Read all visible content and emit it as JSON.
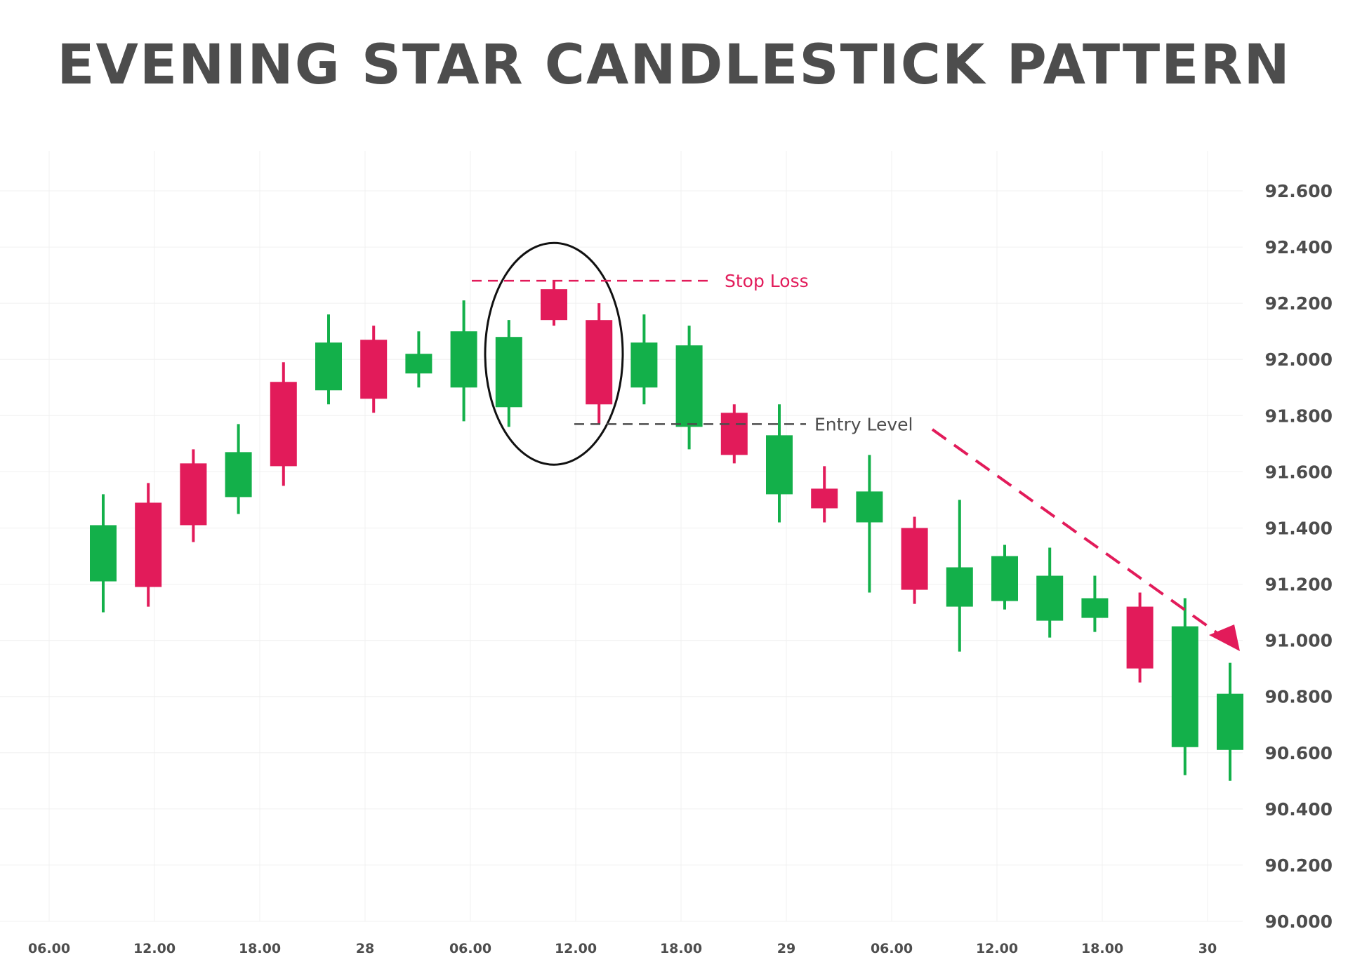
{
  "chart_data": {
    "type": "candlestick",
    "title": "EVENING STAR CANDLESTICK PATTERN",
    "y_axis": {
      "ticks": [
        "92.600",
        "92.400",
        "92.200",
        "92.000",
        "91.800",
        "91.600",
        "91.400",
        "91.200",
        "91.000",
        "90.800",
        "90.600",
        "90.400",
        "90.200",
        "90.000"
      ],
      "range": [
        90.0,
        92.6
      ],
      "position": "right"
    },
    "x_axis": {
      "ticks": [
        "06.00",
        "12.00",
        "18.00",
        "28",
        "06.00",
        "12.00",
        "18.00",
        "29",
        "06.00",
        "12.00",
        "18.00",
        "30"
      ]
    },
    "grid": true,
    "colors": {
      "bullish": "#13b04a",
      "bearish": "#e21b5a",
      "text": "#4d4d4d",
      "stop_loss": "#e21b5a",
      "entry": "#4d4d4d",
      "trend_arrow": "#e21b5a"
    },
    "candles": [
      {
        "open": 91.21,
        "high": 91.52,
        "low": 91.1,
        "close": 91.41
      },
      {
        "open": 91.49,
        "high": 91.56,
        "low": 91.12,
        "close": 91.19
      },
      {
        "open": 91.63,
        "high": 91.68,
        "low": 91.35,
        "close": 91.41
      },
      {
        "open": 91.51,
        "high": 91.77,
        "low": 91.45,
        "close": 91.67
      },
      {
        "open": 91.92,
        "high": 91.99,
        "low": 91.55,
        "close": 91.62
      },
      {
        "open": 91.89,
        "high": 92.16,
        "low": 91.84,
        "close": 92.06
      },
      {
        "open": 92.07,
        "high": 92.12,
        "low": 91.81,
        "close": 91.86
      },
      {
        "open": 91.95,
        "high": 92.1,
        "low": 91.9,
        "close": 92.02
      },
      {
        "open": 91.9,
        "high": 92.21,
        "low": 91.78,
        "close": 92.1
      },
      {
        "open": 91.83,
        "high": 92.14,
        "low": 91.76,
        "close": 92.08
      },
      {
        "open": 92.25,
        "high": 92.28,
        "low": 92.12,
        "close": 92.14
      },
      {
        "open": 92.14,
        "high": 92.2,
        "low": 91.77,
        "close": 91.84
      },
      {
        "open": 91.9,
        "high": 92.16,
        "low": 91.84,
        "close": 92.06
      },
      {
        "open": 91.76,
        "high": 92.12,
        "low": 91.68,
        "close": 92.05
      },
      {
        "open": 91.81,
        "high": 91.84,
        "low": 91.63,
        "close": 91.66
      },
      {
        "open": 91.52,
        "high": 91.84,
        "low": 91.42,
        "close": 91.73
      },
      {
        "open": 91.54,
        "high": 91.62,
        "low": 91.42,
        "close": 91.47
      },
      {
        "open": 91.42,
        "high": 91.66,
        "low": 91.17,
        "close": 91.53
      },
      {
        "open": 91.4,
        "high": 91.44,
        "low": 91.13,
        "close": 91.18
      },
      {
        "open": 91.12,
        "high": 91.5,
        "low": 90.96,
        "close": 91.26
      },
      {
        "open": 91.14,
        "high": 91.34,
        "low": 91.11,
        "close": 91.3
      },
      {
        "open": 91.07,
        "high": 91.33,
        "low": 91.01,
        "close": 91.23
      },
      {
        "open": 91.08,
        "high": 91.23,
        "low": 91.03,
        "close": 91.15
      },
      {
        "open": 91.12,
        "high": 91.17,
        "low": 90.85,
        "close": 90.9
      },
      {
        "open": 90.62,
        "high": 91.15,
        "low": 90.52,
        "close": 91.05
      },
      {
        "open": 90.61,
        "high": 90.92,
        "low": 90.5,
        "close": 90.81
      }
    ],
    "pattern_highlight": {
      "candle_indices": [
        9,
        10,
        11
      ]
    },
    "annotations": {
      "stop_loss": {
        "label": "Stop Loss",
        "value": 92.28
      },
      "entry": {
        "label": "Entry Level",
        "value": 91.77
      }
    }
  }
}
